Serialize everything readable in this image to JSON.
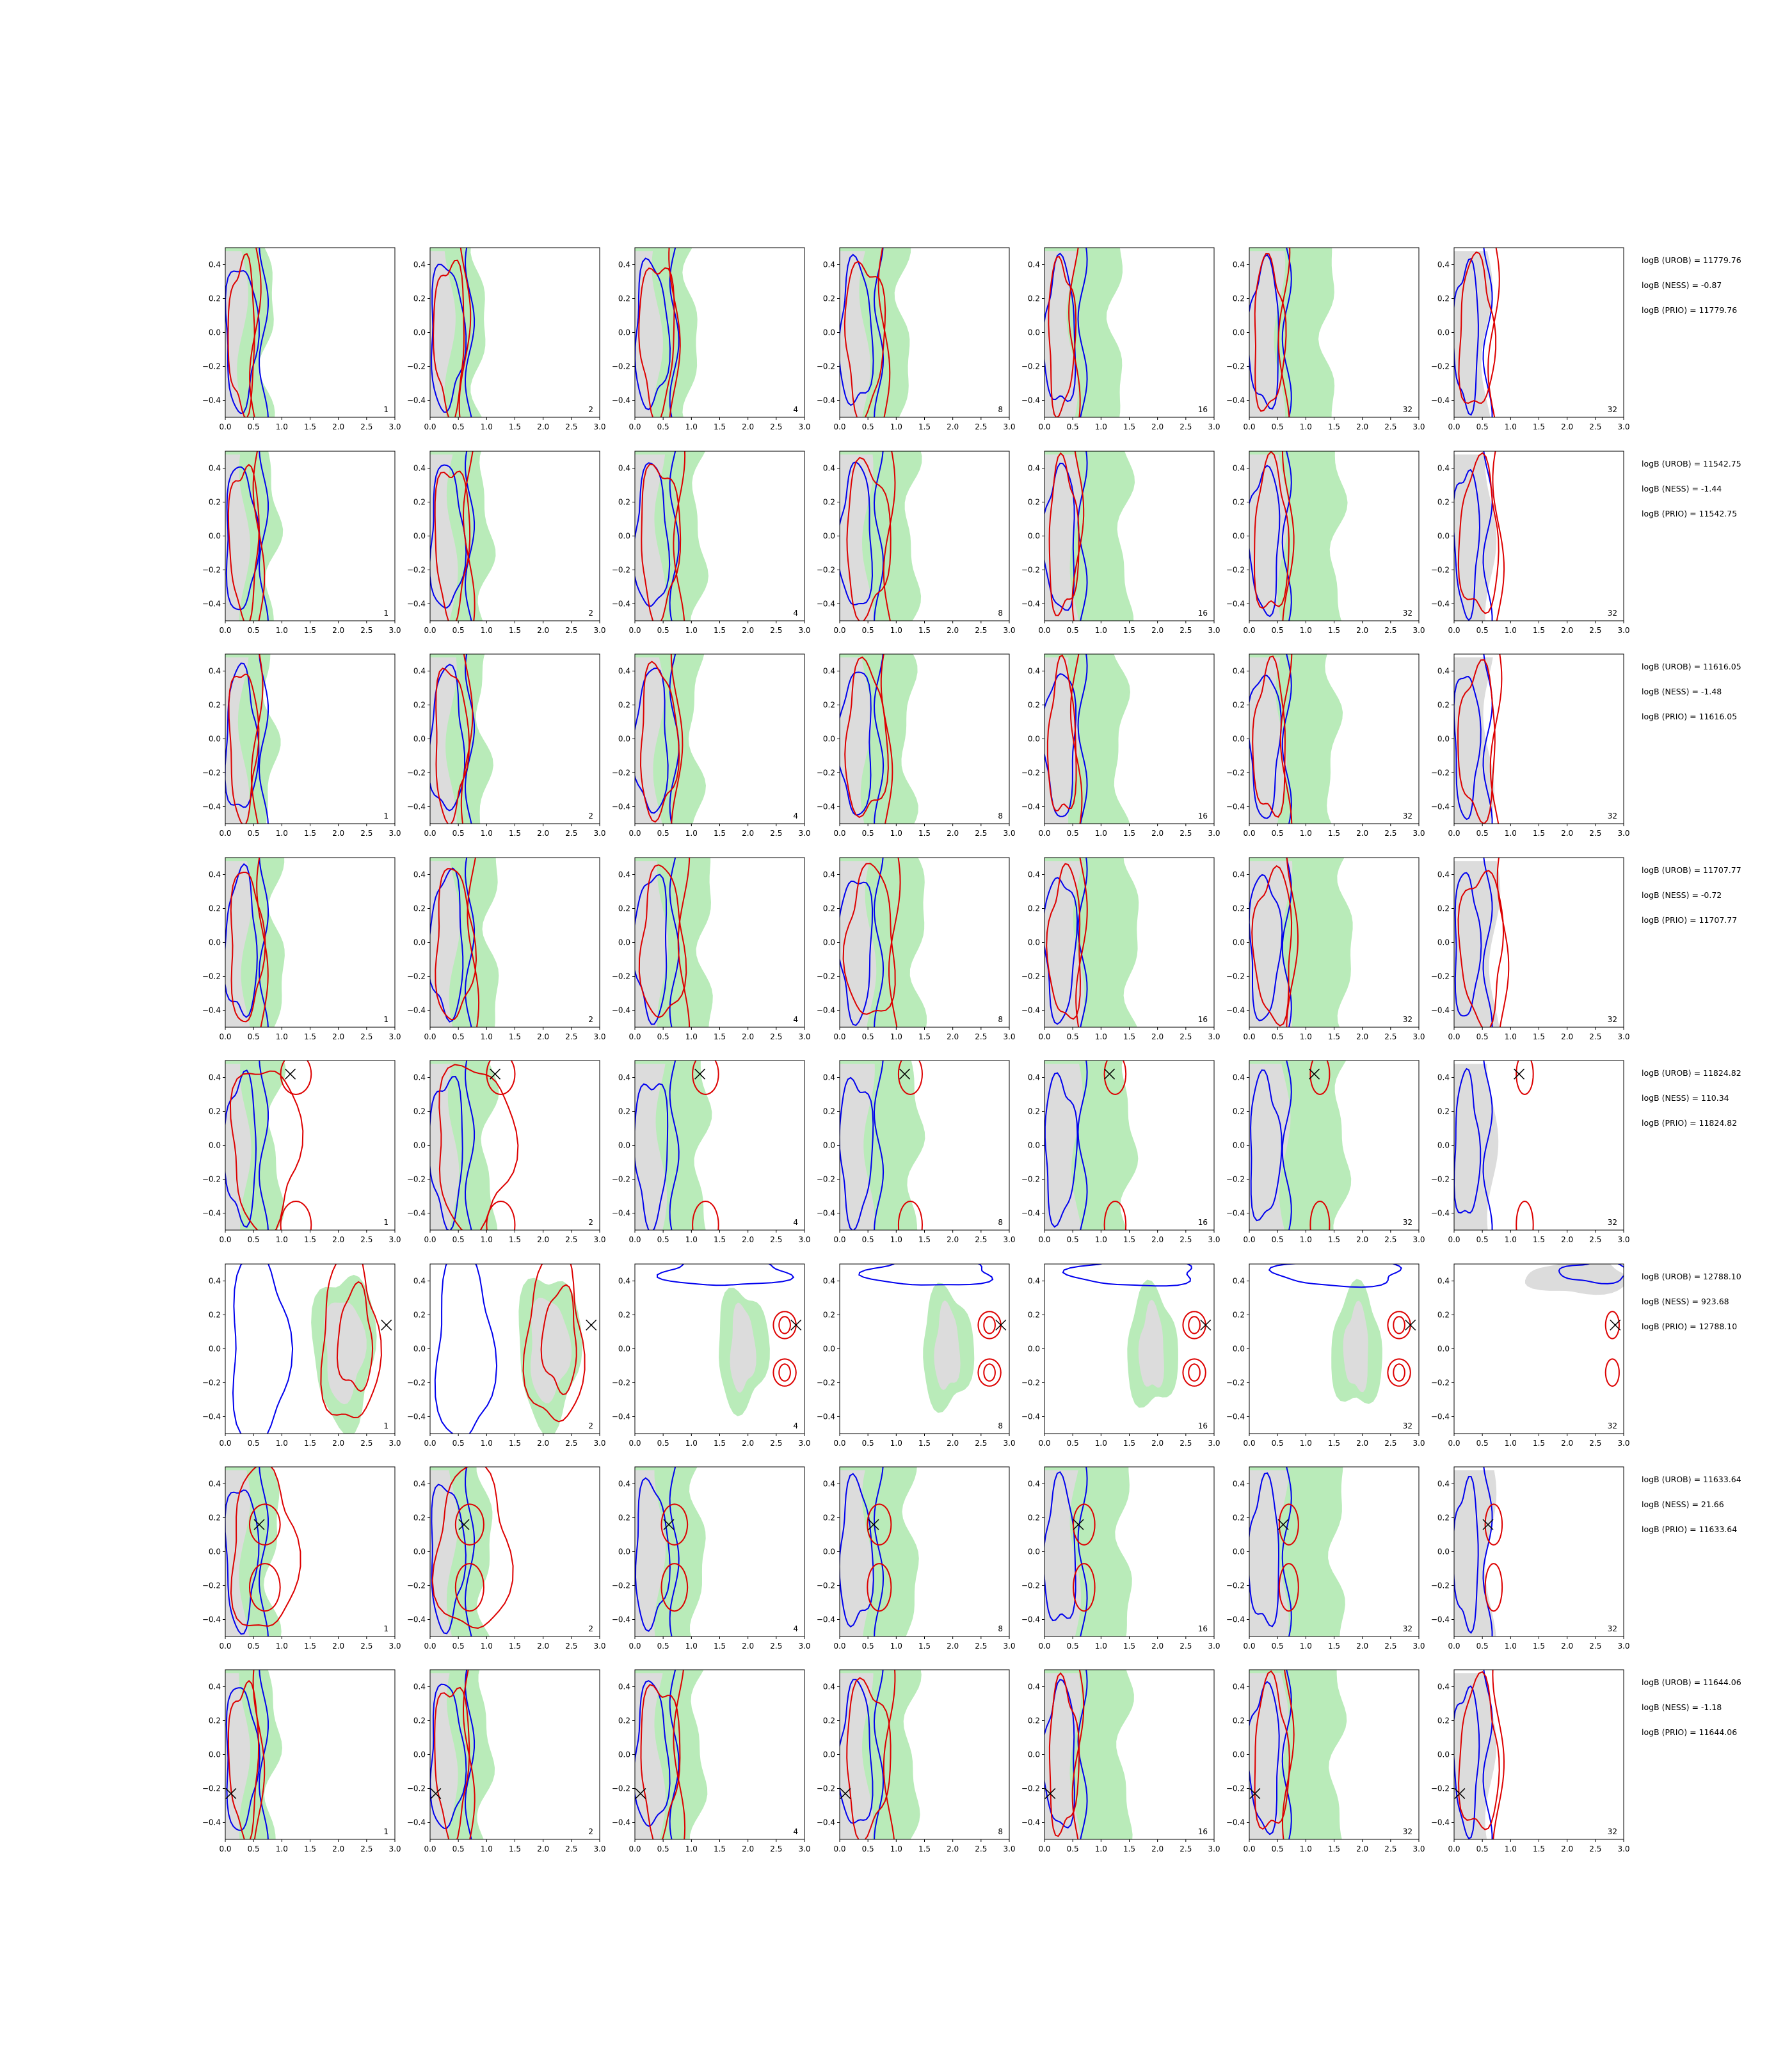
{
  "chart_data": {
    "type": "contour",
    "layout": {
      "rows": 8,
      "cols": 7
    },
    "xlim": [
      0.0,
      3.0
    ],
    "ylim": [
      -0.5,
      0.5
    ],
    "x_ticks": [
      "0.0",
      "0.5",
      "1.0",
      "1.5",
      "2.0",
      "2.5",
      "3.0"
    ],
    "y_ticks": [
      "0.4",
      "0.2",
      "0.0",
      "−0.2",
      "−0.4"
    ],
    "y_tick_values": [
      0.4,
      0.2,
      0.0,
      -0.2,
      -0.4
    ],
    "panel_labels": [
      "1",
      "2",
      "4",
      "8",
      "16",
      "32",
      "32"
    ],
    "colors": {
      "green": "#b9ebb9",
      "gray": "#dcdcdc",
      "blue": "#0000ee",
      "red": "#dd0000",
      "marker": "#000000"
    },
    "rows": [
      {
        "annotations": [
          "logB (UROB) = 11779.76",
          "logB (NESS) = -0.87",
          "logB (PRIO) = 11779.76"
        ],
        "marker": null
      },
      {
        "annotations": [
          "logB (UROB) = 11542.75",
          "logB (NESS) = -1.44",
          "logB (PRIO) = 11542.75"
        ],
        "marker": null
      },
      {
        "annotations": [
          "logB (UROB) = 11616.05",
          "logB (NESS) = -1.48",
          "logB (PRIO) = 11616.05"
        ],
        "marker": null
      },
      {
        "annotations": [
          "logB (UROB) = 11707.77",
          "logB (NESS) = -0.72",
          "logB (PRIO) = 11707.77"
        ],
        "marker": null
      },
      {
        "annotations": [
          "logB (UROB) = 11824.82",
          "logB (NESS) = 110.34",
          "logB (PRIO) = 11824.82"
        ],
        "marker": [
          1.15,
          0.42
        ]
      },
      {
        "annotations": [
          "logB (UROB) = 12788.10",
          "logB (NESS) = 923.68",
          "logB (PRIO) = 12788.10"
        ],
        "marker": [
          2.85,
          0.14
        ]
      },
      {
        "annotations": [
          "logB (UROB) = 11633.64",
          "logB (NESS) = 21.66",
          "logB (PRIO) = 11633.64"
        ],
        "marker": [
          0.6,
          0.16
        ]
      },
      {
        "annotations": [
          "logB (UROB) = 11644.06",
          "logB (NESS) = -1.18",
          "logB (PRIO) = 11644.06"
        ],
        "marker": [
          0.1,
          -0.23
        ]
      }
    ]
  }
}
